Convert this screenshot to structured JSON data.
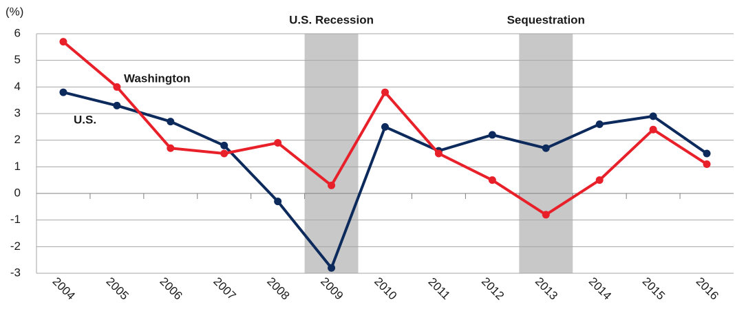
{
  "chart_data": {
    "type": "line",
    "y_label": "(%)",
    "categories": [
      "2004",
      "2005",
      "2006",
      "2007",
      "2008",
      "2009",
      "2010",
      "2011",
      "2012",
      "2013",
      "2014",
      "2015",
      "2016"
    ],
    "series": [
      {
        "name": "U.S.",
        "color": "#0d2a5c",
        "values": [
          3.8,
          3.3,
          2.7,
          1.8,
          -0.3,
          -2.8,
          2.5,
          1.6,
          2.2,
          1.7,
          2.6,
          2.9,
          1.5
        ]
      },
      {
        "name": "Washington",
        "color": "#e8202a",
        "values": [
          5.7,
          4.0,
          1.7,
          1.5,
          1.9,
          0.3,
          3.8,
          1.5,
          0.5,
          -0.8,
          0.5,
          2.4,
          1.1
        ]
      }
    ],
    "annotations": [
      {
        "label": "U.S. Recession",
        "x": "2009"
      },
      {
        "label": "Sequestration",
        "x": "2013"
      }
    ],
    "shade_color": "#c8c8c8",
    "ylim": [
      -3,
      6
    ],
    "yticks": [
      -3,
      -2,
      -1,
      0,
      1,
      2,
      3,
      4,
      5,
      6
    ],
    "grid": true
  }
}
